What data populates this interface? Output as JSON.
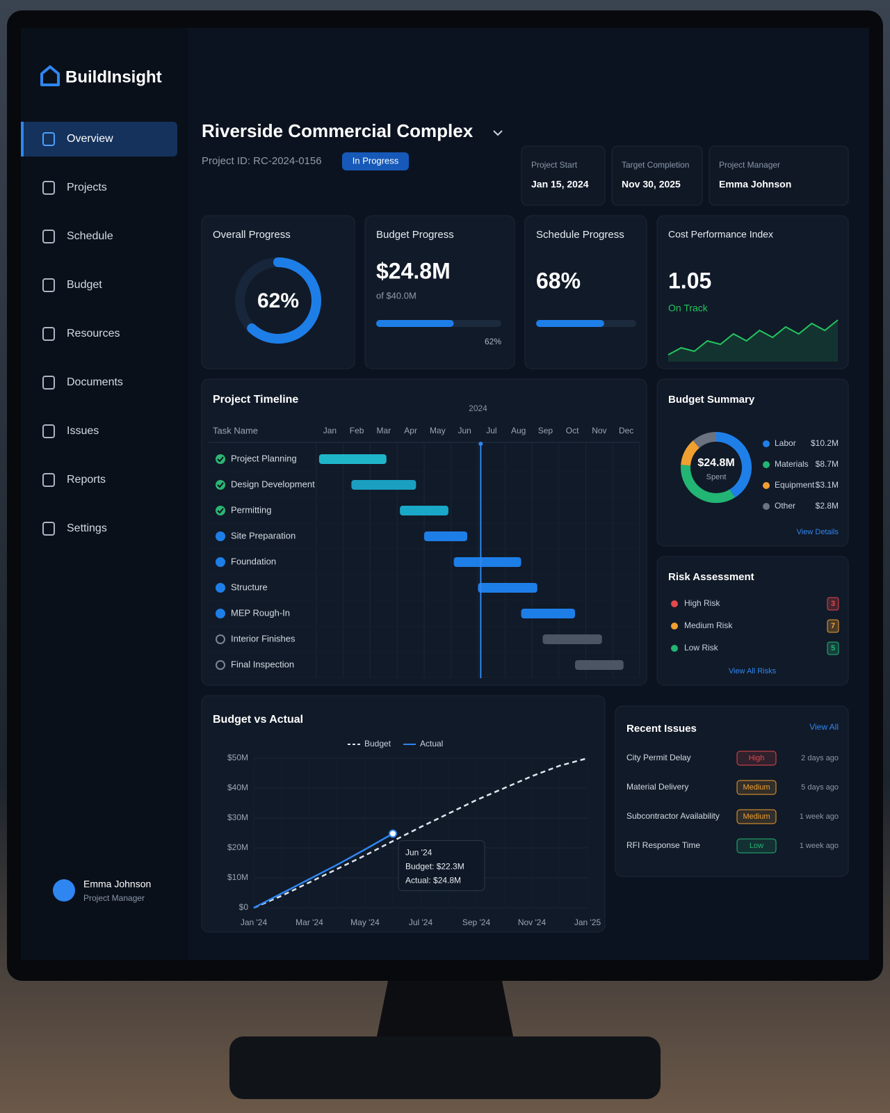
{
  "app": {
    "name": "BuildInsight"
  },
  "nav": [
    "Overview",
    "Projects",
    "Schedule",
    "Budget",
    "Resources",
    "Documents",
    "Issues",
    "Reports",
    "Settings"
  ],
  "nav_active": 0,
  "user": {
    "name": "Emma Johnson",
    "role": "Project Manager"
  },
  "header": {
    "title": "Riverside Commercial Complex",
    "project_id": "Project ID: RC-2024-0156",
    "status": "In Progress"
  },
  "info": [
    {
      "label": "Project Start",
      "value": "Jan 15, 2024"
    },
    {
      "label": "Target Completion",
      "value": "Nov 30, 2025"
    },
    {
      "label": "Project Manager",
      "value": "Emma Johnson"
    }
  ],
  "overall_progress": {
    "title": "Overall Progress",
    "value": 62,
    "label": "62%",
    "color": "#1e7ee8"
  },
  "budget_progress": {
    "title": "Budget Progress",
    "amount": "$24.8M",
    "of": "of $40.0M",
    "value": 62,
    "label": "62%",
    "color": "#1e7ee8"
  },
  "schedule_progress": {
    "title": "Schedule Progress",
    "value": 68,
    "label": "68%",
    "color": "#1e7ee8"
  },
  "cpi": {
    "title": "Cost Performance Index",
    "value": "1.05",
    "status": "On Track",
    "color": "#22c55e",
    "trend": [
      0.95,
      0.97,
      0.96,
      0.99,
      0.98,
      1.01,
      0.99,
      1.02,
      1.0,
      1.03,
      1.01,
      1.04,
      1.02,
      1.05
    ]
  },
  "timeline": {
    "title": "Project Timeline",
    "year": "2024",
    "column": "Task Name",
    "months": [
      "Jan",
      "Feb",
      "Mar",
      "Apr",
      "May",
      "Jun",
      "Jul",
      "Aug",
      "Sep",
      "Oct",
      "Nov",
      "Dec"
    ],
    "today": 6.1,
    "today_color": "#2f86f0",
    "tasks": [
      {
        "name": "Project Planning",
        "state": "complete",
        "color": "#1fb5c9",
        "start": 0.1,
        "end": 2.6
      },
      {
        "name": "Design Development",
        "state": "complete",
        "color": "#1a9fc0",
        "start": 1.3,
        "end": 3.7
      },
      {
        "name": "Permitting",
        "state": "complete",
        "color": "#1aa8c8",
        "start": 3.1,
        "end": 4.9
      },
      {
        "name": "Site Preparation",
        "state": "in-progress",
        "color": "#1e7ee8",
        "start": 4.0,
        "end": 5.6
      },
      {
        "name": "Foundation",
        "state": "in-progress",
        "color": "#1e7ee8",
        "start": 5.1,
        "end": 7.6
      },
      {
        "name": "Structure",
        "state": "in-progress",
        "color": "#1e7ee8",
        "start": 6.0,
        "end": 8.2
      },
      {
        "name": "MEP Rough-In",
        "state": "in-progress",
        "color": "#1e7ee8",
        "start": 7.6,
        "end": 9.6
      },
      {
        "name": "Interior Finishes",
        "state": "not-started",
        "color": "#4b5563",
        "start": 8.4,
        "end": 10.6
      },
      {
        "name": "Final Inspection",
        "state": "not-started",
        "color": "#4b5563",
        "start": 9.6,
        "end": 11.4
      }
    ]
  },
  "budget_summary": {
    "title": "Budget Summary",
    "total": "$24.8M",
    "total_caption": "Spent",
    "link": "View Details",
    "items": [
      {
        "name": "Labor",
        "value": 10.2,
        "label": "$10.2M",
        "color": "#1f7fe8"
      },
      {
        "name": "Materials",
        "value": 8.7,
        "label": "$8.7M",
        "color": "#22b573"
      },
      {
        "name": "Equipment",
        "value": 3.1,
        "label": "$3.1M",
        "color": "#f0a030"
      },
      {
        "name": "Other",
        "value": 2.8,
        "label": "$2.8M",
        "color": "#6b7280"
      }
    ]
  },
  "risk": {
    "title": "Risk Assessment",
    "link": "View All Risks",
    "items": [
      {
        "name": "High Risk",
        "count": "3",
        "color": "#e5484d"
      },
      {
        "name": "Medium Risk",
        "count": "7",
        "color": "#f0a030"
      },
      {
        "name": "Low Risk",
        "count": "5",
        "color": "#22b573"
      }
    ]
  },
  "budget_vs_actual": {
    "type": "line",
    "title": "Budget vs Actual",
    "categories": [
      "Jan '24",
      null,
      "Mar '24",
      null,
      "May '24",
      null,
      "Jul '24",
      null,
      "Sep '24",
      null,
      "Nov '24",
      null,
      "Jan '25"
    ],
    "series": [
      {
        "name": "Budget",
        "color": "#dfe6ee",
        "dashed": true,
        "values": [
          0,
          4,
          8.5,
          13,
          17.5,
          22.3,
          27,
          31.5,
          36,
          40,
          44,
          47.5,
          50
        ]
      },
      {
        "name": "Actual",
        "color": "#2f86f0",
        "dashed": false,
        "values": [
          0,
          4.8,
          9.6,
          14.4,
          19.5,
          24.8,
          null,
          null,
          null,
          null,
          null,
          null,
          null
        ]
      }
    ],
    "ylim": [
      0,
      50
    ],
    "yticks": [
      {
        "value": 0,
        "label": "$0"
      },
      {
        "value": 10,
        "label": "$10M"
      },
      {
        "value": 20,
        "label": "$20M"
      },
      {
        "value": 30,
        "label": "$30M"
      },
      {
        "value": 40,
        "label": "$40M"
      },
      {
        "value": 50,
        "label": "$50M"
      }
    ],
    "grid": true,
    "tooltip": [
      "Jun '24",
      "Budget: $22.3M",
      "Actual: $24.8M"
    ]
  },
  "recent_issues": {
    "title": "Recent Issues",
    "link": "View All",
    "items": [
      {
        "name": "City Permit Delay",
        "priority": "High",
        "color": "#e5484d",
        "time": "2 days ago"
      },
      {
        "name": "Material Delivery",
        "priority": "Medium",
        "color": "#f0a030",
        "time": "5 days ago"
      },
      {
        "name": "Subcontractor Availability",
        "priority": "Medium",
        "color": "#f0a030",
        "time": "1 week ago"
      },
      {
        "name": "RFI Response Time",
        "priority": "Low",
        "color": "#22b573",
        "time": "1 week ago"
      }
    ]
  }
}
